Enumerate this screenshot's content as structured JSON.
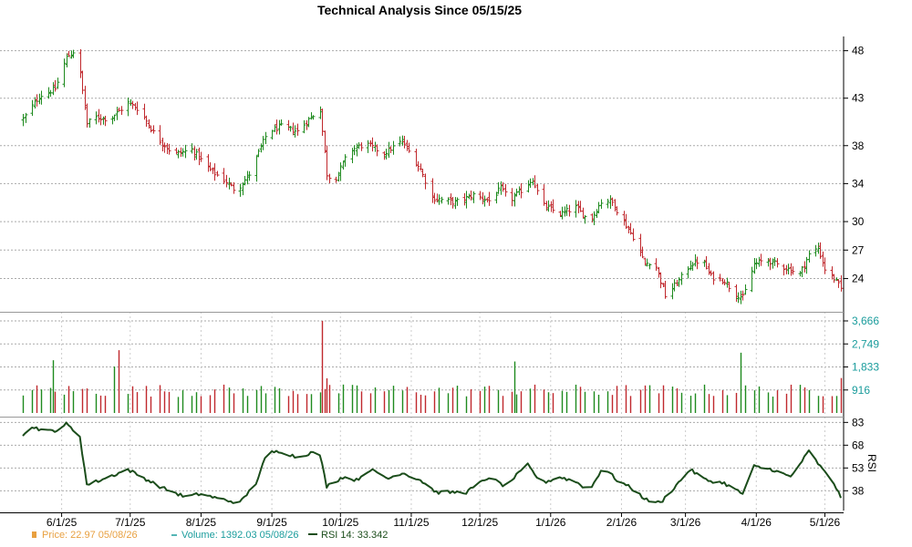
{
  "chart_data": {
    "type": "line",
    "title": "Technical Analysis Since 05/15/25",
    "x_tick_labels": [
      "6/1/25",
      "7/1/25",
      "8/1/25",
      "9/1/25",
      "10/1/25",
      "11/1/25",
      "12/1/25",
      "1/1/26",
      "2/1/26",
      "3/1/26",
      "4/1/26",
      "5/1/26"
    ],
    "price_panel": {
      "y_tick_labels": [
        "48",
        "43",
        "38",
        "34",
        "30",
        "27",
        "24"
      ],
      "ylim": [
        20.5,
        49.5
      ],
      "grid": true,
      "anchors": [
        [
          "05/15/25",
          40.8
        ],
        [
          "05/22/25",
          43.2
        ],
        [
          "05/29/25",
          44.0
        ],
        [
          "06/03/25",
          47.3
        ],
        [
          "06/06/25",
          47.9
        ],
        [
          "06/09/25",
          45.5
        ],
        [
          "06/12/25",
          40.3
        ],
        [
          "06/15/25",
          41.0
        ],
        [
          "06/22/25",
          40.8
        ],
        [
          "06/30/25",
          42.5
        ],
        [
          "07/05/25",
          41.8
        ],
        [
          "07/12/25",
          39.0
        ],
        [
          "07/20/25",
          37.1
        ],
        [
          "07/28/25",
          37.6
        ],
        [
          "08/05/25",
          35.4
        ],
        [
          "08/12/25",
          34.2
        ],
        [
          "08/16/25",
          33.2
        ],
        [
          "08/22/25",
          35.0
        ],
        [
          "08/30/25",
          39.5
        ],
        [
          "09/05/25",
          40.0
        ],
        [
          "09/12/25",
          39.5
        ],
        [
          "09/18/25",
          41.0
        ],
        [
          "09/22/25",
          41.8
        ],
        [
          "09/25/25",
          35.0
        ],
        [
          "09/28/25",
          34.2
        ],
        [
          "10/05/25",
          37.5
        ],
        [
          "10/12/25",
          38.2
        ],
        [
          "10/20/25",
          37.2
        ],
        [
          "10/28/25",
          38.5
        ],
        [
          "11/05/25",
          35.5
        ],
        [
          "11/10/25",
          32.5
        ],
        [
          "11/20/25",
          32.0
        ],
        [
          "11/28/25",
          32.8
        ],
        [
          "12/05/25",
          32.2
        ],
        [
          "12/10/25",
          33.5
        ],
        [
          "12/14/25",
          32.2
        ],
        [
          "12/20/25",
          33.5
        ],
        [
          "12/24/25",
          34.5
        ],
        [
          "12/28/25",
          31.8
        ],
        [
          "01/05/26",
          30.8
        ],
        [
          "01/12/26",
          31.5
        ],
        [
          "01/18/26",
          30.0
        ],
        [
          "01/24/26",
          32.5
        ],
        [
          "01/28/26",
          32.0
        ],
        [
          "02/02/26",
          30.0
        ],
        [
          "02/07/26",
          28.0
        ],
        [
          "02/11/26",
          25.5
        ],
        [
          "02/15/26",
          26.0
        ],
        [
          "02/20/26",
          22.2
        ],
        [
          "02/26/26",
          23.8
        ],
        [
          "03/03/26",
          25.5
        ],
        [
          "03/08/26",
          26.0
        ],
        [
          "03/12/26",
          24.2
        ],
        [
          "03/18/26",
          23.8
        ],
        [
          "03/22/26",
          22.5
        ],
        [
          "03/26/26",
          22.0
        ],
        [
          "03/31/26",
          25.5
        ],
        [
          "04/05/26",
          26.0
        ],
        [
          "04/10/26",
          25.5
        ],
        [
          "04/15/26",
          25.0
        ],
        [
          "04/20/26",
          24.5
        ],
        [
          "04/24/26",
          26.5
        ],
        [
          "04/28/26",
          27.2
        ],
        [
          "05/01/26",
          25.0
        ],
        [
          "05/05/26",
          24.0
        ],
        [
          "05/08/26",
          22.97
        ]
      ]
    },
    "volume_panel": {
      "y_tick_labels": [
        "3,666",
        "2,749",
        "1,833",
        "916"
      ],
      "ylim": [
        0,
        3666
      ],
      "baseline": 850,
      "spikes": [
        [
          "05/28/25",
          2100
        ],
        [
          "06/24/25",
          1850
        ],
        [
          "06/26/25",
          2500
        ],
        [
          "09/23/25",
          3666
        ],
        [
          "09/25/25",
          1380
        ],
        [
          "12/16/25",
          2050
        ],
        [
          "03/25/26",
          2400
        ],
        [
          "05/08/26",
          1392.03
        ]
      ]
    },
    "rsi_panel": {
      "y_tick_labels": [
        "83",
        "68",
        "53",
        "38"
      ],
      "ylim": [
        25,
        85
      ],
      "axis_label": "RSI",
      "anchors": [
        [
          "05/15/25",
          75
        ],
        [
          "05/20/25",
          80
        ],
        [
          "05/25/25",
          77
        ],
        [
          "05/30/25",
          78
        ],
        [
          "06/03/25",
          82
        ],
        [
          "06/09/25",
          74
        ],
        [
          "06/12/25",
          42
        ],
        [
          "06/18/25",
          45
        ],
        [
          "06/30/25",
          52
        ],
        [
          "07/05/25",
          48
        ],
        [
          "07/15/25",
          40
        ],
        [
          "07/25/25",
          34
        ],
        [
          "08/01/25",
          36
        ],
        [
          "08/08/25",
          33
        ],
        [
          "08/18/25",
          30
        ],
        [
          "08/25/25",
          43
        ],
        [
          "08/30/25",
          63
        ],
        [
          "09/05/25",
          64
        ],
        [
          "09/12/25",
          60
        ],
        [
          "09/18/25",
          63
        ],
        [
          "09/22/25",
          62
        ],
        [
          "09/25/25",
          41
        ],
        [
          "10/02/25",
          47
        ],
        [
          "10/08/25",
          45
        ],
        [
          "10/14/25",
          52
        ],
        [
          "10/22/25",
          46
        ],
        [
          "10/28/25",
          50
        ],
        [
          "11/05/25",
          45
        ],
        [
          "11/12/25",
          37
        ],
        [
          "11/25/25",
          37
        ],
        [
          "12/05/25",
          47
        ],
        [
          "12/12/25",
          41
        ],
        [
          "12/22/25",
          55
        ],
        [
          "12/28/25",
          43
        ],
        [
          "01/05/26",
          47
        ],
        [
          "01/12/26",
          44
        ],
        [
          "01/18/26",
          38
        ],
        [
          "01/24/26",
          54
        ],
        [
          "01/30/26",
          45
        ],
        [
          "02/05/26",
          40
        ],
        [
          "02/12/26",
          32
        ],
        [
          "02/18/26",
          30
        ],
        [
          "02/24/26",
          40
        ],
        [
          "03/03/26",
          52
        ],
        [
          "03/10/26",
          45
        ],
        [
          "03/18/26",
          43
        ],
        [
          "03/26/26",
          36
        ],
        [
          "03/31/26",
          54
        ],
        [
          "04/08/26",
          52
        ],
        [
          "04/16/26",
          47
        ],
        [
          "04/24/26",
          64
        ],
        [
          "04/28/26",
          56
        ],
        [
          "05/02/26",
          48
        ],
        [
          "05/05/26",
          43
        ],
        [
          "05/08/26",
          33.342
        ]
      ]
    },
    "legend": [
      {
        "name": "Price: 22.97  05/08/26",
        "color": "#e8a040",
        "marker": "square"
      },
      {
        "name": "Volume: 1392.03  05/08/26",
        "color": "#1a9c9c",
        "marker": "dash"
      },
      {
        "name": "RSI 14: 33.342",
        "color": "#1b4d1b",
        "marker": "line"
      }
    ],
    "colors": {
      "up": "#1e8a1e",
      "down": "#c0282d",
      "rsi": "#1b4d1b",
      "grid": "#aaaaaa"
    },
    "date_range": [
      "05/15/25",
      "05/08/26"
    ]
  }
}
